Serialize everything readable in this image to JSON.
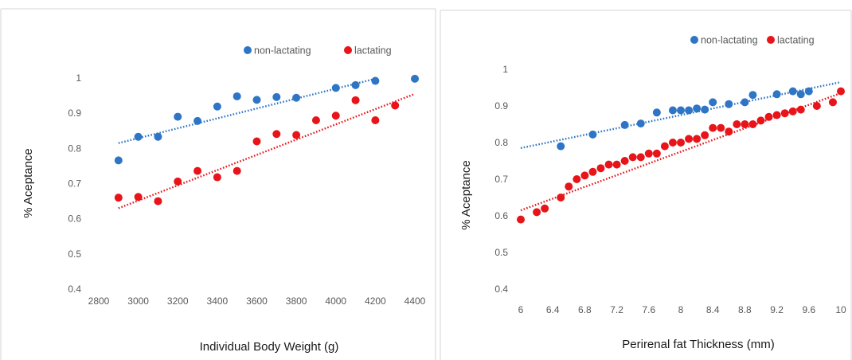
{
  "chart_data": [
    {
      "type": "scatter",
      "title": "",
      "xlabel": "Individual Body Weight (g)",
      "ylabel": "% Aceptance",
      "xlim": [
        2800,
        4400
      ],
      "ylim": [
        0.4,
        1.0
      ],
      "x_ticks": [
        "2800",
        "3000",
        "3200",
        "3400",
        "3600",
        "3800",
        "4000",
        "4200",
        "4400"
      ],
      "y_ticks": [
        "0.4",
        "0.5",
        "0.6",
        "0.7",
        "0.8",
        "0.9",
        "1"
      ],
      "grid": false,
      "legend_position": "top",
      "series": [
        {
          "name": "non-lactating",
          "color": "#2e75c5",
          "x": [
            2900,
            3000,
            3100,
            3200,
            3300,
            3400,
            3500,
            3600,
            3700,
            3800,
            4000,
            4100,
            4200,
            4400
          ],
          "y": [
            0.766,
            0.833,
            0.833,
            0.89,
            0.878,
            0.919,
            0.948,
            0.938,
            0.946,
            0.944,
            0.972,
            0.98,
            0.992,
            0.998
          ],
          "trendline": {
            "type": "linear",
            "x": [
              2900,
              4200
            ],
            "y": [
              0.815,
              0.998
            ]
          }
        },
        {
          "name": "lactating",
          "color": "#e8141a",
          "x": [
            2900,
            3000,
            3100,
            3200,
            3300,
            3400,
            3500,
            3600,
            3700,
            3800,
            3900,
            4000,
            4100,
            4200,
            4300
          ],
          "y": [
            0.66,
            0.662,
            0.65,
            0.706,
            0.736,
            0.718,
            0.736,
            0.82,
            0.841,
            0.838,
            0.88,
            0.893,
            0.937,
            0.88,
            0.922
          ],
          "trendline": {
            "type": "linear",
            "x": [
              2900,
              4400
            ],
            "y": [
              0.63,
              0.955
            ]
          }
        }
      ]
    },
    {
      "type": "scatter",
      "title": "",
      "xlabel": "Perirenal fat Thickness (mm)",
      "ylabel": "% Aceptance",
      "xlim": [
        6,
        10
      ],
      "ylim": [
        0.4,
        1.0
      ],
      "x_ticks": [
        "6",
        "6.4",
        "6.8",
        "7.2",
        "7.6",
        "8",
        "8.4",
        "8.8",
        "9.2",
        "9.6",
        "10"
      ],
      "y_ticks": [
        "0.4",
        "0.5",
        "0.6",
        "0.7",
        "0.8",
        "0.9",
        "1"
      ],
      "grid": false,
      "legend_position": "top",
      "series": [
        {
          "name": "non-lactating",
          "color": "#2e75c5",
          "x": [
            6.5,
            6.9,
            7.3,
            7.5,
            7.7,
            7.9,
            8.0,
            8.1,
            8.2,
            8.3,
            8.4,
            8.6,
            8.8,
            8.9,
            9.2,
            9.4,
            9.5,
            9.6
          ],
          "y": [
            0.79,
            0.822,
            0.848,
            0.852,
            0.882,
            0.888,
            0.888,
            0.888,
            0.893,
            0.89,
            0.91,
            0.905,
            0.91,
            0.93,
            0.932,
            0.94,
            0.932,
            0.94
          ],
          "trendline": {
            "type": "linear",
            "x": [
              6,
              10
            ],
            "y": [
              0.785,
              0.965
            ]
          }
        },
        {
          "name": "lactating",
          "color": "#e8141a",
          "x": [
            6.0,
            6.2,
            6.3,
            6.5,
            6.6,
            6.7,
            6.8,
            6.9,
            7.0,
            7.1,
            7.2,
            7.3,
            7.4,
            7.5,
            7.6,
            7.7,
            7.8,
            7.9,
            8.0,
            8.1,
            8.2,
            8.3,
            8.4,
            8.5,
            8.6,
            8.7,
            8.8,
            8.9,
            9.0,
            9.1,
            9.2,
            9.3,
            9.4,
            9.5,
            9.7,
            9.9,
            10.0
          ],
          "y": [
            0.59,
            0.61,
            0.62,
            0.65,
            0.68,
            0.7,
            0.71,
            0.72,
            0.73,
            0.74,
            0.74,
            0.75,
            0.76,
            0.76,
            0.77,
            0.77,
            0.79,
            0.8,
            0.8,
            0.81,
            0.81,
            0.82,
            0.84,
            0.84,
            0.83,
            0.85,
            0.85,
            0.85,
            0.86,
            0.87,
            0.875,
            0.88,
            0.885,
            0.89,
            0.9,
            0.91,
            0.94
          ],
          "trendline": {
            "type": "linear",
            "x": [
              6,
              10
            ],
            "y": [
              0.615,
              0.935
            ]
          }
        }
      ]
    }
  ]
}
